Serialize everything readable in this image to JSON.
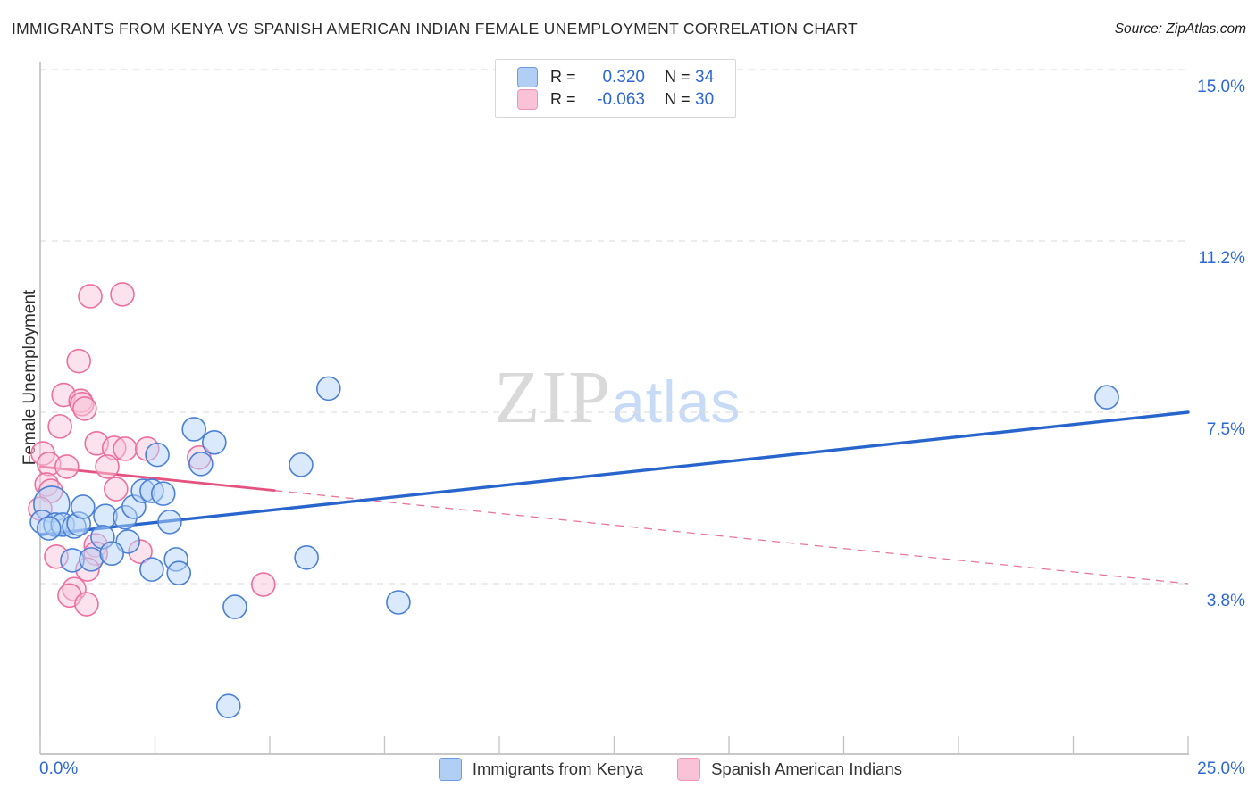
{
  "header": {
    "title": "IMMIGRANTS FROM KENYA VS SPANISH AMERICAN INDIAN FEMALE UNEMPLOYMENT CORRELATION CHART",
    "source": "Source: ZipAtlas.com"
  },
  "legend_box": {
    "rows": [
      {
        "series": "kenya",
        "r_label": "R =",
        "r_value": "0.320",
        "n_label": "N =",
        "n_value": "34"
      },
      {
        "series": "spanish",
        "r_label": "R =",
        "r_value": "-0.063",
        "n_label": "N =",
        "n_value": "30"
      }
    ]
  },
  "watermark": {
    "zip": "ZIP",
    "atlas": "atlas"
  },
  "axes": {
    "y_title": "Female Unemployment",
    "x_min_label": "0.0%",
    "x_max_label": "25.0%"
  },
  "bottom_legend": [
    {
      "label": "Immigrants from Kenya"
    },
    {
      "label": "Spanish American Indians"
    }
  ],
  "colors": {
    "accent_text": "#2d68d8",
    "blue_fill": "rgba(182,211,247,0.5)",
    "blue_stroke": "#4a80d6",
    "pink_fill": "rgba(250,198,217,0.5)",
    "pink_stroke": "#ee6f9e",
    "blue_trend": "#2765cc",
    "pink_trend": "#e4537f",
    "gridline": "#e0e0e0",
    "axis_line": "#b5b5b5"
  },
  "chart_data": {
    "type": "scatter",
    "title": "Immigrants from Kenya vs Spanish American Indian Female Unemployment",
    "xlabel": "",
    "ylabel": "Female Unemployment",
    "x_range": [
      0,
      25
    ],
    "y_range": [
      0,
      15.6
    ],
    "grid": true,
    "x_tick_step_pct": 2.5,
    "y_ticks": [
      {
        "label": "15.0%",
        "value": 15.0
      },
      {
        "label": "11.2%",
        "value": 11.25
      },
      {
        "label": "7.5%",
        "value": 7.5
      },
      {
        "label": "3.8%",
        "value": 3.75
      }
    ],
    "series": [
      {
        "name": "Immigrants from Kenya",
        "r": 0.32,
        "n": 34,
        "points": [
          [
            0.25,
            5.49
          ],
          [
            0.04,
            5.1
          ],
          [
            0.33,
            5.04
          ],
          [
            0.49,
            5.04
          ],
          [
            0.74,
            5.0
          ],
          [
            0.84,
            5.06
          ],
          [
            0.93,
            5.43
          ],
          [
            0.19,
            4.96
          ],
          [
            1.42,
            5.23
          ],
          [
            1.85,
            5.2
          ],
          [
            2.04,
            5.43
          ],
          [
            2.24,
            5.78
          ],
          [
            2.43,
            5.78
          ],
          [
            2.68,
            5.72
          ],
          [
            2.82,
            5.1
          ],
          [
            1.36,
            4.77
          ],
          [
            1.91,
            4.67
          ],
          [
            0.7,
            4.26
          ],
          [
            1.11,
            4.28
          ],
          [
            1.56,
            4.41
          ],
          [
            2.43,
            4.06
          ],
          [
            2.96,
            4.28
          ],
          [
            3.02,
            3.98
          ],
          [
            2.55,
            6.57
          ],
          [
            3.35,
            7.13
          ],
          [
            3.79,
            6.84
          ],
          [
            3.5,
            6.37
          ],
          [
            4.24,
            3.24
          ],
          [
            4.1,
            1.07
          ],
          [
            5.68,
            6.35
          ],
          [
            5.8,
            4.32
          ],
          [
            6.28,
            8.02
          ],
          [
            7.8,
            3.34
          ],
          [
            23.23,
            7.83
          ]
        ],
        "large_marker_index": 0
      },
      {
        "name": "Spanish American Indians",
        "r": -0.063,
        "n": 30,
        "points": [
          [
            1.09,
            10.04
          ],
          [
            1.79,
            10.08
          ],
          [
            0.84,
            8.62
          ],
          [
            0.51,
            7.88
          ],
          [
            0.88,
            7.75
          ],
          [
            0.91,
            7.68
          ],
          [
            0.97,
            7.58
          ],
          [
            0.43,
            7.19
          ],
          [
            0.06,
            6.6
          ],
          [
            1.23,
            6.82
          ],
          [
            1.61,
            6.72
          ],
          [
            1.85,
            6.7
          ],
          [
            2.33,
            6.7
          ],
          [
            0.19,
            6.37
          ],
          [
            0.58,
            6.31
          ],
          [
            1.46,
            6.31
          ],
          [
            3.46,
            6.51
          ],
          [
            0.14,
            5.92
          ],
          [
            0.23,
            5.78
          ],
          [
            1.65,
            5.82
          ],
          [
            0.0,
            5.39
          ],
          [
            0.35,
            4.34
          ],
          [
            1.21,
            4.59
          ],
          [
            1.21,
            4.41
          ],
          [
            1.03,
            4.06
          ],
          [
            2.18,
            4.45
          ],
          [
            0.74,
            3.63
          ],
          [
            0.64,
            3.49
          ],
          [
            1.01,
            3.3
          ],
          [
            4.86,
            3.73
          ]
        ]
      }
    ],
    "trend_lines": [
      {
        "series": "Immigrants from Kenya",
        "start": [
          0,
          4.82
        ],
        "end": [
          25,
          7.5
        ],
        "style": "solid"
      },
      {
        "series": "Spanish American Indians",
        "start": [
          0,
          6.31
        ],
        "end": [
          25,
          3.75
        ],
        "style": "solid-then-dashed",
        "solid_until_x": 5.1
      }
    ],
    "legend_position": "bottom"
  }
}
